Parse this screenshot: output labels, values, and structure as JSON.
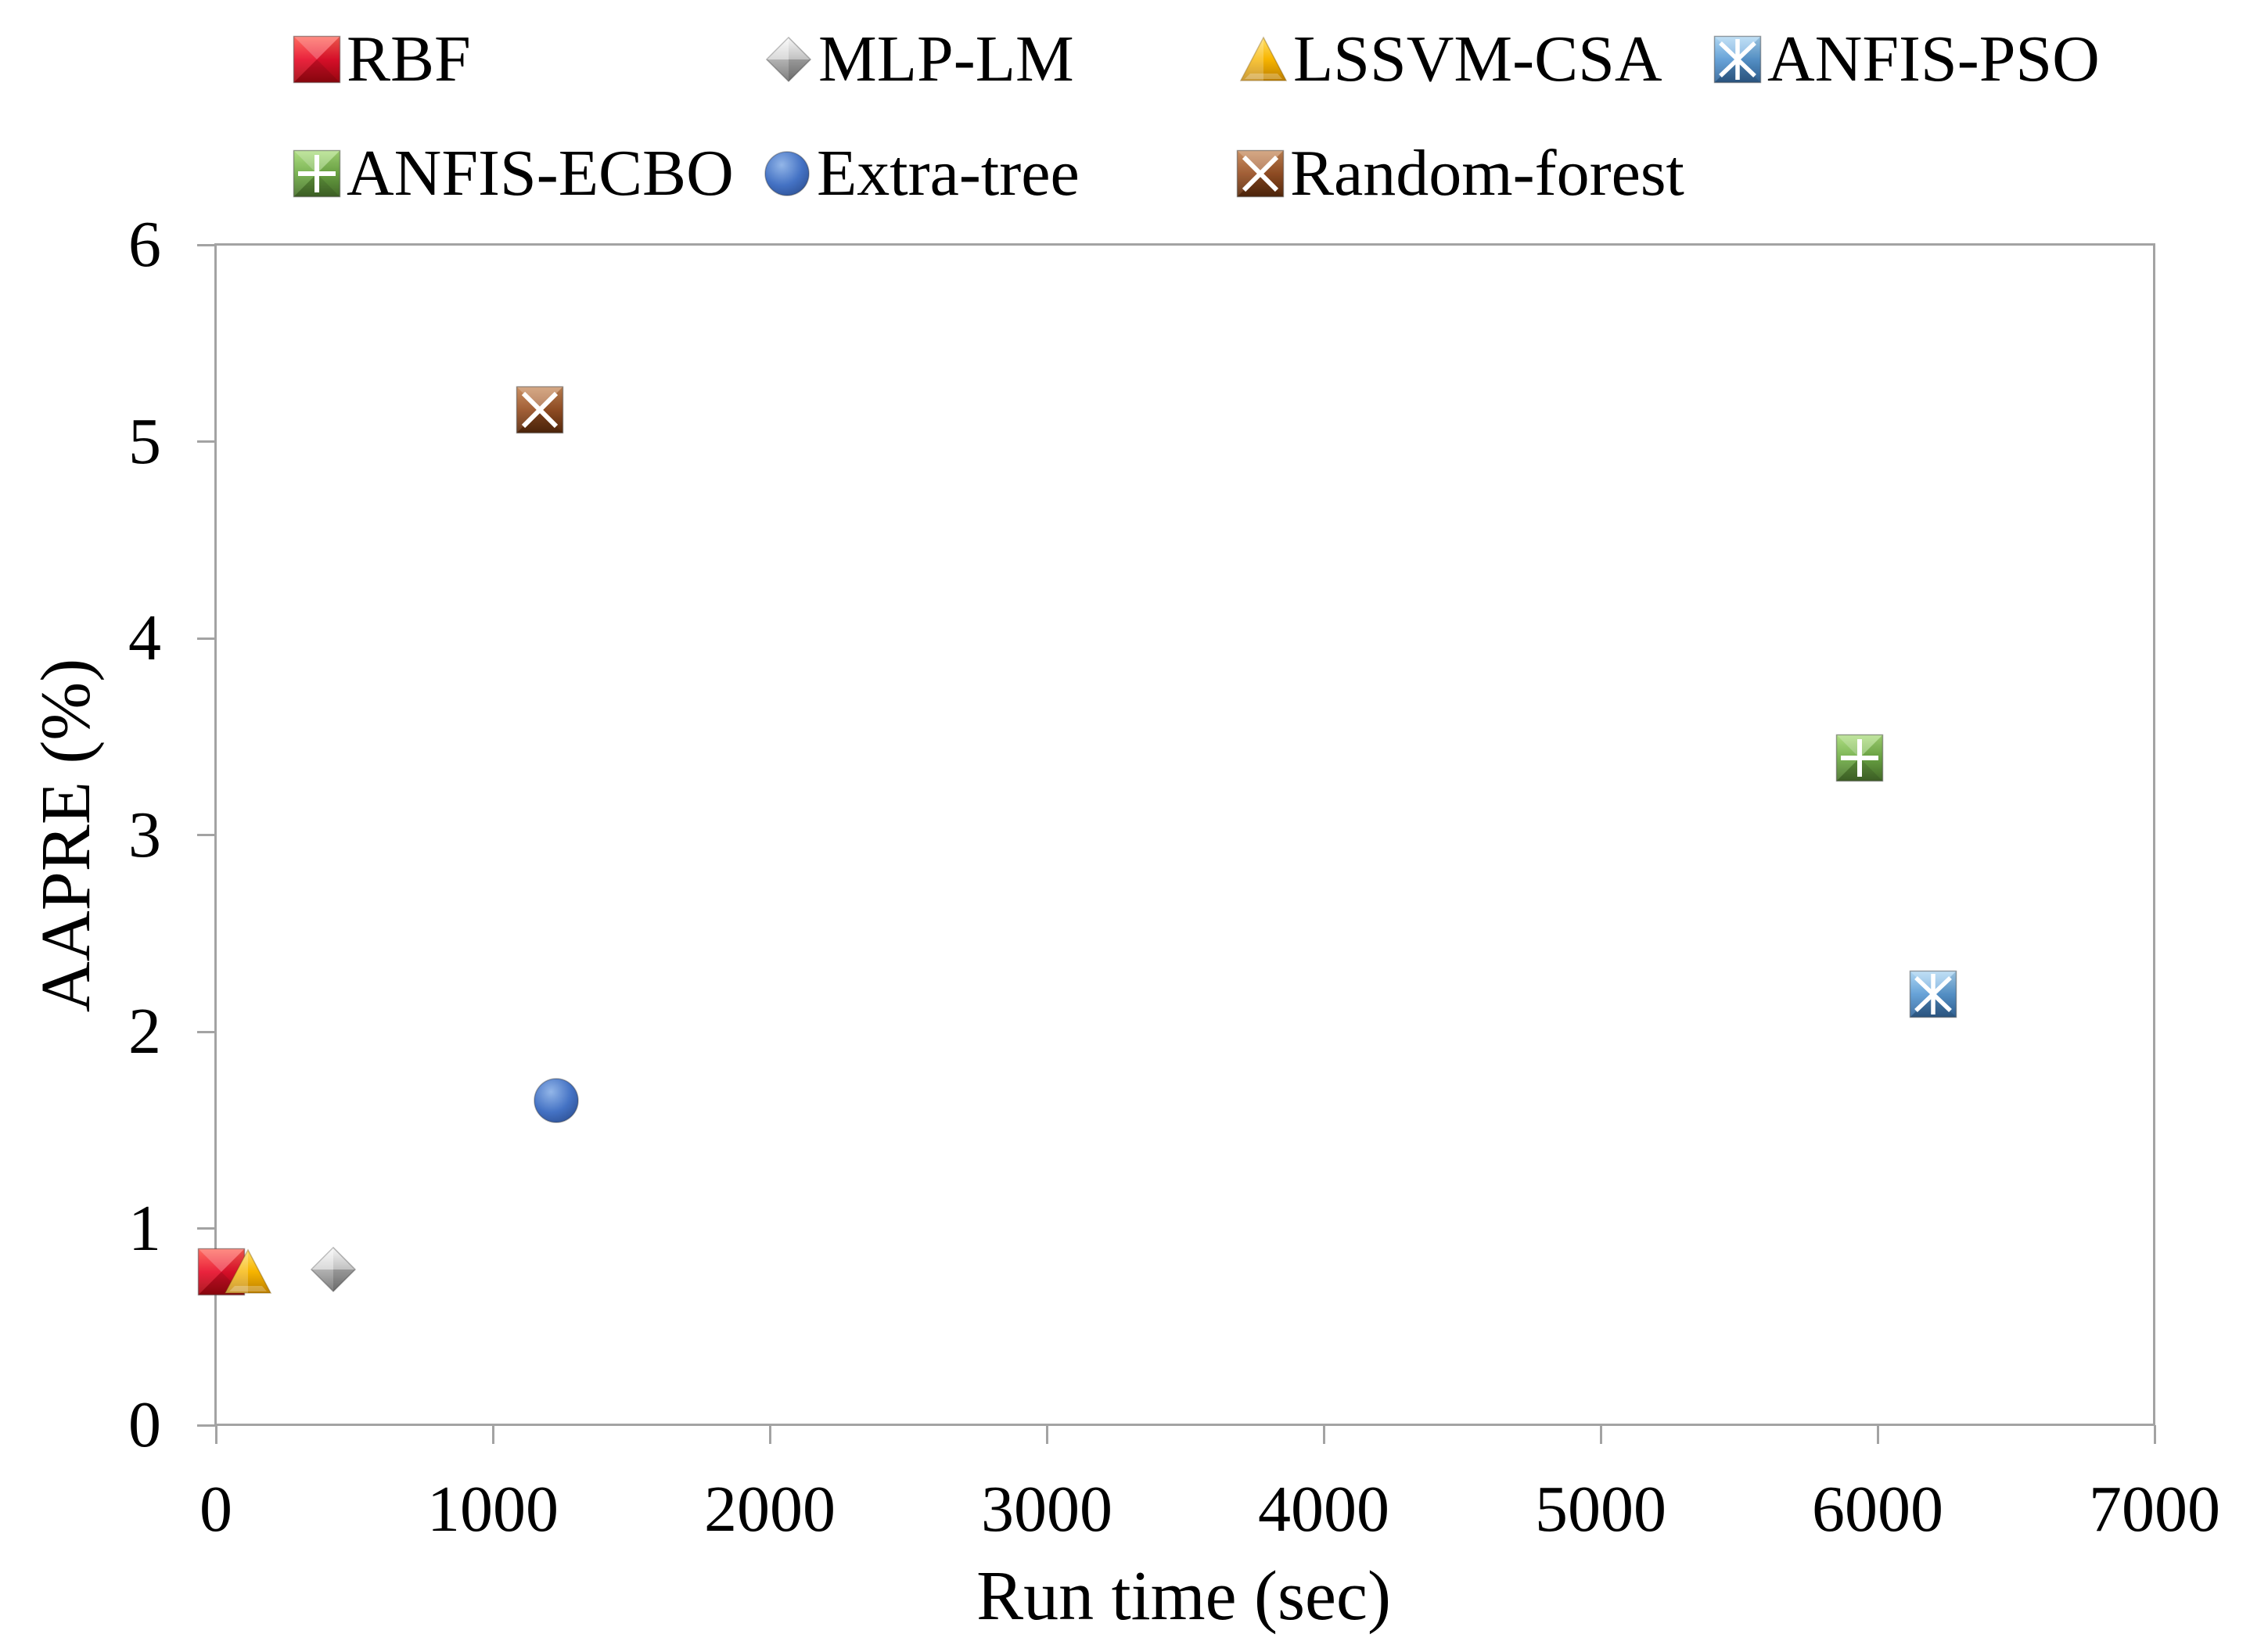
{
  "chart_data": {
    "type": "scatter",
    "title": "",
    "xlabel": "Run time (sec)",
    "ylabel": "AAPRE (%)",
    "xlim": [
      0,
      7000
    ],
    "ylim": [
      0,
      6
    ],
    "x_ticks": [
      0,
      1000,
      2000,
      3000,
      4000,
      5000,
      6000,
      7000
    ],
    "y_ticks": [
      0,
      1,
      2,
      3,
      4,
      5,
      6
    ],
    "grid": false,
    "legend_position": "top",
    "axis_color": "#A3A3A3",
    "text_color": "#000000",
    "series": [
      {
        "name": "RBF",
        "marker": "square",
        "colors": {
          "base": "#E8112D",
          "light": "#FF5F52",
          "dark": "#A50710"
        },
        "points": [
          [
            20,
            0.78
          ]
        ]
      },
      {
        "name": "MLP-LM",
        "marker": "diamond",
        "colors": {
          "base": "#B3B3B3",
          "light": "#F5F5F5",
          "dark": "#7E7E7E"
        },
        "points": [
          [
            425,
            0.79
          ]
        ]
      },
      {
        "name": "LSSVM-CSA",
        "marker": "triangle",
        "colors": {
          "base": "#F7B500",
          "light": "#FFE06B",
          "dark": "#BD7F00"
        },
        "points": [
          [
            115,
            0.78
          ]
        ]
      },
      {
        "name": "ANFIS-PSO",
        "marker": "square-asterisk",
        "colors": {
          "base": "#5B9BD5",
          "light": "#A8D4F2",
          "dark": "#34679B"
        },
        "points": [
          [
            6200,
            2.19
          ]
        ]
      },
      {
        "name": "ANFIS-ECBO",
        "marker": "square-plus",
        "colors": {
          "base": "#70AD47",
          "light": "#A8DC78",
          "dark": "#49722C"
        },
        "points": [
          [
            5935,
            3.39
          ]
        ]
      },
      {
        "name": "Extra-tree",
        "marker": "circle",
        "colors": {
          "base": "#4472C4",
          "light": "#93B6E8",
          "dark": "#2A4C8E"
        },
        "points": [
          [
            1230,
            1.65
          ]
        ]
      },
      {
        "name": "Random-forest",
        "marker": "square-x",
        "colors": {
          "base": "#9A5226",
          "light": "#C68756",
          "dark": "#5C2C0D"
        },
        "points": [
          [
            1170,
            5.16
          ]
        ]
      }
    ]
  }
}
